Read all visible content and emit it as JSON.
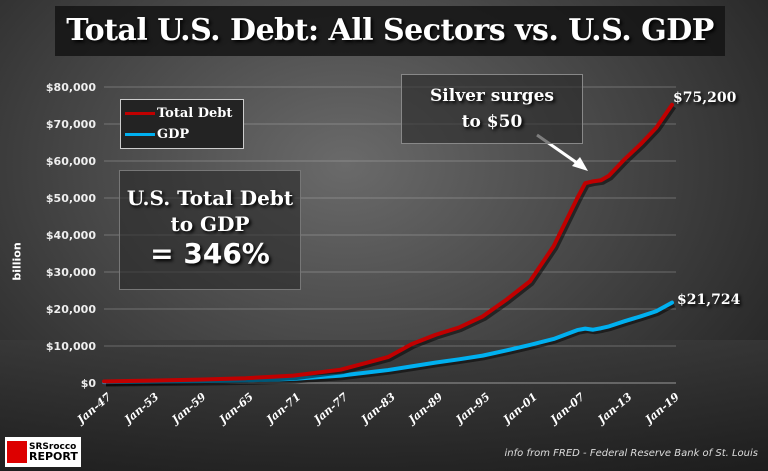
{
  "chart_data": {
    "type": "line",
    "title": "Total U.S. Debt: All Sectors vs. U.S. GDP",
    "ylabel": "billion",
    "ylim": [
      0,
      80000
    ],
    "yticks": [
      "$0",
      "$10,000",
      "$20,000",
      "$30,000",
      "$40,000",
      "$50,000",
      "$60,000",
      "$70,000",
      "$80,000"
    ],
    "xticks": [
      "Jan-47",
      "Jan-53",
      "Jan-59",
      "Jan-65",
      "Jan-71",
      "Jan-77",
      "Jan-83",
      "Jan-89",
      "Jan-95",
      "Jan-01",
      "Jan-07",
      "Jan-13",
      "Jan-19"
    ],
    "xlim": [
      1947,
      2019
    ],
    "grid": true,
    "legend_position": "top-left",
    "x": [
      1947,
      1953,
      1959,
      1965,
      1971,
      1977,
      1983,
      1986,
      1989,
      1992,
      1995,
      1998,
      2001,
      2004,
      2007,
      2008,
      2009,
      2010,
      2011,
      2013,
      2015,
      2017,
      2019
    ],
    "series": [
      {
        "name": "Total Debt",
        "color": "#c00000",
        "values": [
          420,
          650,
          900,
          1300,
          2000,
          3600,
          7000,
          10500,
          13000,
          15000,
          18000,
          22500,
          27500,
          37000,
          50000,
          54000,
          54500,
          54800,
          56000,
          60500,
          64500,
          69000,
          75200
        ]
      },
      {
        "name": "GDP",
        "color": "#00b0f0",
        "values": [
          244,
          380,
          510,
          700,
          1100,
          2000,
          3500,
          4500,
          5500,
          6400,
          7400,
          8800,
          10300,
          11900,
          14300,
          14700,
          14400,
          14800,
          15300,
          16700,
          18000,
          19400,
          21724
        ]
      }
    ],
    "end_labels": {
      "debt": "$75,200",
      "gdp": "$21,724"
    },
    "annotations": {
      "silver_line1": "Silver surges",
      "silver_line2": "to $50",
      "ratio_line1": "U.S. Total Debt",
      "ratio_line2": "to GDP",
      "ratio_line3": "= 346%"
    }
  },
  "footer": {
    "source": "info from FRED - Federal Reserve Bank of St. Louis",
    "logo_line1": "SRSrocco",
    "logo_line2": "REPORT"
  }
}
